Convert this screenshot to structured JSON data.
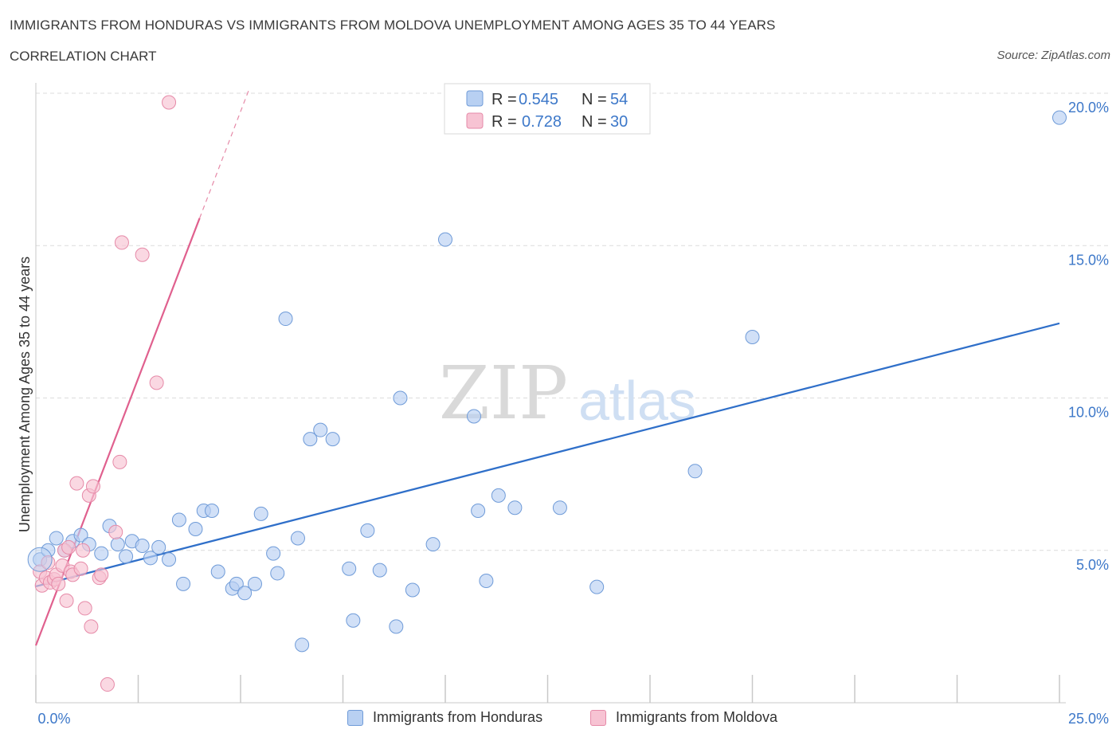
{
  "header": {
    "title": "IMMIGRANTS FROM HONDURAS VS IMMIGRANTS FROM MOLDOVA UNEMPLOYMENT AMONG AGES 35 TO 44 YEARS",
    "subtitle": "CORRELATION CHART",
    "source": "Source: ZipAtlas.com"
  },
  "watermark": {
    "zip": "ZIP",
    "atlas": "atlas"
  },
  "legend": {
    "rows": [
      {
        "r_label": "R = ",
        "r_value": "0.545",
        "n_label": "N = ",
        "n_value": "54"
      },
      {
        "r_label": "R = ",
        "r_value": "0.728",
        "n_label": "N = ",
        "n_value": "30"
      }
    ]
  },
  "bottom_legend": {
    "honduras": "Immigrants from Honduras",
    "moldova": "Immigrants from Moldova"
  },
  "colors": {
    "honduras_fill": "#b8d0f2",
    "honduras_stroke": "#6f9bd8",
    "honduras_line": "#2f6fc9",
    "moldova_fill": "#f7c3d3",
    "moldova_stroke": "#e68aa8",
    "moldova_line": "#e0608e",
    "value_blue": "#3d78c9",
    "grid": "#dcdcdc"
  },
  "chart_data": {
    "type": "scatter",
    "title": "IMMIGRANTS FROM HONDURAS VS IMMIGRANTS FROM MOLDOVA UNEMPLOYMENT AMONG AGES 35 TO 44 YEARS",
    "xlabel": "",
    "ylabel": "Unemployment Among Ages 35 to 44 years",
    "xlim": [
      0,
      25
    ],
    "ylim": [
      0,
      20
    ],
    "x_tick_labels": [
      "0.0%",
      "25.0%"
    ],
    "y_tick_values": [
      5,
      10,
      15,
      20
    ],
    "y_tick_labels": [
      "5.0%",
      "10.0%",
      "15.0%",
      "20.0%"
    ],
    "series": [
      {
        "name": "Immigrants from Honduras",
        "R": 0.545,
        "N": 54,
        "trend": {
          "x": [
            0,
            25
          ],
          "y": [
            3.82,
            12.45
          ]
        },
        "points": [
          [
            0.1,
            4.7
          ],
          [
            0.3,
            5.0
          ],
          [
            0.5,
            5.4
          ],
          [
            0.7,
            5.0
          ],
          [
            0.9,
            5.3
          ],
          [
            1.1,
            5.5
          ],
          [
            1.3,
            5.2
          ],
          [
            1.6,
            4.9
          ],
          [
            1.8,
            5.8
          ],
          [
            2.0,
            5.2
          ],
          [
            2.2,
            4.8
          ],
          [
            2.35,
            5.3
          ],
          [
            2.6,
            5.15
          ],
          [
            2.8,
            4.75
          ],
          [
            3.0,
            5.1
          ],
          [
            3.25,
            4.7
          ],
          [
            3.5,
            6.0
          ],
          [
            3.6,
            3.9
          ],
          [
            3.9,
            5.7
          ],
          [
            4.1,
            6.3
          ],
          [
            4.3,
            6.3
          ],
          [
            4.45,
            4.3
          ],
          [
            4.8,
            3.75
          ],
          [
            4.9,
            3.9
          ],
          [
            5.1,
            3.6
          ],
          [
            5.35,
            3.9
          ],
          [
            5.5,
            6.2
          ],
          [
            5.8,
            4.9
          ],
          [
            5.9,
            4.25
          ],
          [
            6.1,
            12.6
          ],
          [
            6.4,
            5.4
          ],
          [
            6.5,
            1.9
          ],
          [
            6.7,
            8.65
          ],
          [
            6.95,
            8.95
          ],
          [
            7.25,
            8.65
          ],
          [
            7.65,
            4.4
          ],
          [
            7.75,
            2.7
          ],
          [
            8.1,
            5.65
          ],
          [
            8.4,
            4.35
          ],
          [
            8.8,
            2.5
          ],
          [
            8.9,
            10.0
          ],
          [
            9.2,
            3.7
          ],
          [
            9.7,
            5.2
          ],
          [
            10.0,
            15.2
          ],
          [
            10.7,
            9.4
          ],
          [
            10.8,
            6.3
          ],
          [
            11.0,
            4.0
          ],
          [
            11.3,
            6.8
          ],
          [
            11.7,
            6.4
          ],
          [
            12.8,
            6.4
          ],
          [
            13.7,
            3.8
          ],
          [
            16.1,
            7.6
          ],
          [
            17.5,
            12.0
          ],
          [
            25.0,
            19.2
          ]
        ]
      },
      {
        "name": "Immigrants from Moldova",
        "R": 0.728,
        "N": 30,
        "trend": {
          "x": [
            0,
            4.0
          ],
          "y": [
            1.88,
            15.9
          ]
        },
        "trend_dashed": {
          "x": [
            4.0,
            5.2
          ],
          "y": [
            15.9,
            20.1
          ]
        },
        "points": [
          [
            0.1,
            4.3
          ],
          [
            0.15,
            3.85
          ],
          [
            0.25,
            4.1
          ],
          [
            0.3,
            4.6
          ],
          [
            0.35,
            3.95
          ],
          [
            0.45,
            4.05
          ],
          [
            0.5,
            4.2
          ],
          [
            0.55,
            3.9
          ],
          [
            0.65,
            4.5
          ],
          [
            0.7,
            5.0
          ],
          [
            0.75,
            3.35
          ],
          [
            0.8,
            5.1
          ],
          [
            0.85,
            4.3
          ],
          [
            0.9,
            4.2
          ],
          [
            1.0,
            7.2
          ],
          [
            1.1,
            4.4
          ],
          [
            1.15,
            5.0
          ],
          [
            1.2,
            3.1
          ],
          [
            1.3,
            6.8
          ],
          [
            1.35,
            2.5
          ],
          [
            1.4,
            7.1
          ],
          [
            1.55,
            4.1
          ],
          [
            1.6,
            4.2
          ],
          [
            1.75,
            0.6
          ],
          [
            1.95,
            5.6
          ],
          [
            2.05,
            7.9
          ],
          [
            2.1,
            15.1
          ],
          [
            2.6,
            14.7
          ],
          [
            2.95,
            10.5
          ],
          [
            3.25,
            19.7
          ]
        ]
      }
    ]
  }
}
